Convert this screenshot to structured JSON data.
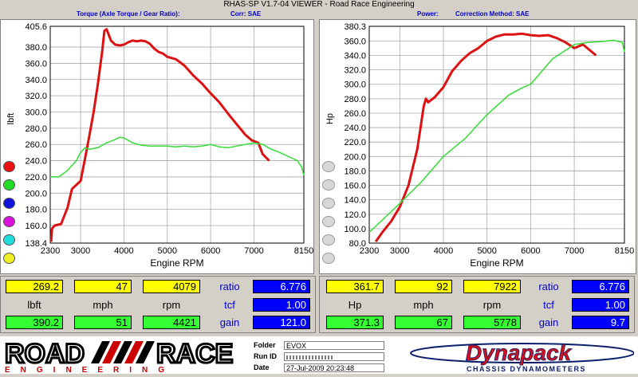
{
  "window": {
    "title": "RHAS-SP V1.7-04  VIEWER - Road Race Engineering"
  },
  "header": {
    "left_title": "Torque (Axle Torque / Gear Ratio):",
    "left_corr": "Corr: SAE",
    "right_title": "Power:",
    "right_corr": "Correction Method: SAE"
  },
  "colors": {
    "run1": "#dd1111",
    "run2": "#33dd33",
    "grid": "#a8a8a8"
  },
  "legend_dots": [
    "#ee1111",
    "#22dd22",
    "#1111dd",
    "#dd11dd",
    "#22dddd",
    "#eeee22"
  ],
  "chart_data": [
    {
      "type": "line",
      "xlabel": "Engine RPM",
      "ylabel": "lbft",
      "xlim": [
        2300,
        8150
      ],
      "ylim": [
        138.4,
        405.6
      ],
      "xticks": [
        2300,
        3000,
        4000,
        5000,
        6000,
        7000,
        8150
      ],
      "yticks": [
        138.4,
        160.0,
        180.0,
        200.0,
        220.0,
        240.0,
        260.0,
        280.0,
        300.0,
        320.0,
        340.0,
        360.0,
        380.0,
        405.6
      ],
      "grid": true,
      "series": [
        {
          "color": "red",
          "x": [
            2320,
            2340,
            2400,
            2550,
            2700,
            2800,
            2900,
            3000,
            3100,
            3200,
            3300,
            3400,
            3500,
            3550,
            3600,
            3700,
            3800,
            3900,
            4000,
            4100,
            4200,
            4300,
            4400,
            4500,
            4600,
            4700,
            4800,
            4900,
            5000,
            5200,
            5400,
            5600,
            5800,
            6000,
            6200,
            6400,
            6600,
            6800,
            6950,
            7100,
            7200,
            7350
          ],
          "y": [
            140,
            156,
            160,
            162,
            182,
            205,
            210,
            215,
            242,
            270,
            300,
            335,
            375,
            400,
            402,
            388,
            383,
            382,
            383,
            386,
            388,
            387,
            388,
            387,
            384,
            378,
            374,
            372,
            368,
            365,
            357,
            345,
            335,
            323,
            312,
            298,
            285,
            272,
            265,
            262,
            248,
            240
          ]
        },
        {
          "color": "green",
          "x": [
            2300,
            2500,
            2700,
            2900,
            3000,
            3100,
            3200,
            3400,
            3600,
            3800,
            3900,
            4000,
            4200,
            4400,
            4600,
            4800,
            5000,
            5200,
            5400,
            5600,
            5800,
            6000,
            6200,
            6400,
            6600,
            6800,
            7000,
            7200,
            7400,
            7600,
            7800,
            8000,
            8100,
            8150
          ],
          "y": [
            220,
            220,
            228,
            240,
            250,
            256,
            254,
            256,
            262,
            266,
            269,
            268,
            262,
            259,
            258,
            258,
            258,
            257,
            258,
            257,
            258,
            260,
            257,
            256,
            258,
            260,
            262,
            260,
            254,
            250,
            245,
            240,
            232,
            222
          ]
        }
      ]
    },
    {
      "type": "line",
      "xlabel": "Engine RPM",
      "ylabel": "Hp",
      "xlim": [
        2300,
        8150
      ],
      "ylim": [
        80.0,
        380.3
      ],
      "xticks": [
        2300,
        3000,
        4000,
        5000,
        6000,
        7000,
        8150
      ],
      "yticks": [
        80.0,
        100.0,
        120.0,
        140.0,
        160.0,
        180.0,
        200.0,
        220.0,
        240.0,
        260.0,
        280.0,
        300.0,
        320.0,
        340.0,
        360.0,
        380.3
      ],
      "grid": true,
      "series": [
        {
          "color": "red",
          "x": [
            2450,
            2600,
            2800,
            3000,
            3200,
            3400,
            3550,
            3600,
            3650,
            3800,
            4000,
            4200,
            4400,
            4600,
            4800,
            5000,
            5200,
            5400,
            5600,
            5800,
            6000,
            6200,
            6400,
            6600,
            6800,
            7000,
            7200,
            7400,
            7500
          ],
          "y": [
            82,
            95,
            110,
            130,
            160,
            210,
            270,
            280,
            275,
            282,
            296,
            318,
            332,
            343,
            350,
            360,
            366,
            369,
            369,
            370,
            368,
            367,
            368,
            364,
            358,
            350,
            355,
            345,
            340
          ]
        },
        {
          "color": "green",
          "x": [
            2300,
            2600,
            3000,
            3500,
            4000,
            4500,
            5000,
            5500,
            5800,
            6000,
            6500,
            7000,
            7300,
            7600,
            7900,
            8100,
            8150
          ],
          "y": [
            95,
            112,
            135,
            165,
            200,
            225,
            258,
            285,
            295,
            300,
            335,
            355,
            358,
            359,
            361,
            358,
            345
          ]
        }
      ]
    }
  ],
  "readouts": {
    "left": {
      "row1": [
        "269.2",
        "47",
        "4079"
      ],
      "units": [
        "lbft",
        "mph",
        "rpm"
      ],
      "row3": [
        "390.2",
        "51",
        "4421"
      ],
      "right_labels": [
        "ratio",
        "tcf",
        "gain"
      ],
      "right_values": [
        "6.776",
        "1.00",
        "121.0"
      ]
    },
    "right": {
      "row1": [
        "361.7",
        "92",
        "7922"
      ],
      "units": [
        "Hp",
        "mph",
        "rpm"
      ],
      "row3": [
        "371.3",
        "67",
        "5778"
      ],
      "right_labels": [
        "ratio",
        "tcf",
        "gain"
      ],
      "right_values": [
        "6.776",
        "1.00",
        "9.7"
      ]
    }
  },
  "footer": {
    "logo_road": "ROAD",
    "logo_race": "RACE",
    "logo_engineering": "ENGINEERING",
    "folder_label": "Folder",
    "folder_value": "EVOX",
    "runid_label": "Run ID",
    "date_label": "Date",
    "date_value": "27-Jul-2009  20:23:48",
    "brand": "Dynapack",
    "brand_sub": "CHASSIS DYNAMOMETERS"
  }
}
